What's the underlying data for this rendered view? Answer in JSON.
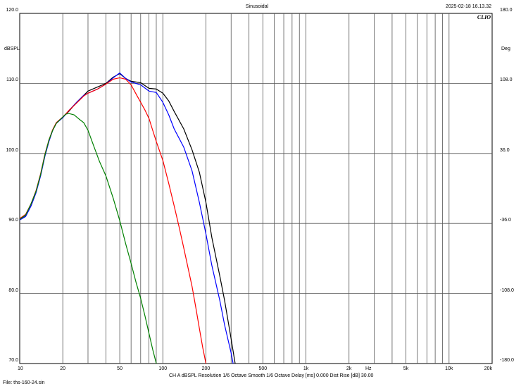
{
  "header": {
    "title": "Sinusoidal",
    "timestamp": "2025-02-18 16.13.32",
    "brand": "CLIO"
  },
  "footer": {
    "settings": "CH A   dBSPL   Resolution 1/6 Octave   Smooth 1/6 Octave   Delay [ms] 0.000   Dist Rise [dB] 30.00",
    "file": "File: ths-160-24.sin"
  },
  "chart_data": {
    "type": "line",
    "x_scale": "log",
    "xlim": [
      10,
      20000
    ],
    "ylim": [
      70,
      120
    ],
    "y2lim": [
      -180,
      180
    ],
    "grid": true,
    "xlabel": "Hz",
    "ylabel": "dBSPL",
    "y2label": "Deg",
    "x_tick_labels": [
      {
        "value": 10,
        "label": "10"
      },
      {
        "value": 20,
        "label": "20"
      },
      {
        "value": 50,
        "label": "50"
      },
      {
        "value": 100,
        "label": "100"
      },
      {
        "value": 200,
        "label": "200"
      },
      {
        "value": 500,
        "label": "500"
      },
      {
        "value": 1000,
        "label": "1k"
      },
      {
        "value": 2000,
        "label": "2k"
      },
      {
        "value": 5000,
        "label": "5k"
      },
      {
        "value": 10000,
        "label": "10k"
      },
      {
        "value": 20000,
        "label": "20k"
      }
    ],
    "y_tick_labels": [
      {
        "value": 120,
        "label": "120.0"
      },
      {
        "value": 110,
        "label": "110.0"
      },
      {
        "value": 100,
        "label": "100.0"
      },
      {
        "value": 90,
        "label": "90.0"
      },
      {
        "value": 80,
        "label": "80.0"
      },
      {
        "value": 70,
        "label": "70.0"
      }
    ],
    "y2_tick_labels": [
      {
        "value": 180,
        "label": "180.0"
      },
      {
        "value": 108,
        "label": "108.0"
      },
      {
        "value": 36,
        "label": "36.0"
      },
      {
        "value": -36,
        "label": "-36.0"
      },
      {
        "value": -108,
        "label": "-108.0"
      },
      {
        "value": -180,
        "label": "-180.0"
      }
    ],
    "series": [
      {
        "color": "#000000",
        "points": [
          [
            10,
            90.5
          ],
          [
            11,
            91.2
          ],
          [
            12,
            92.8
          ],
          [
            13,
            94.6
          ],
          [
            14,
            97.0
          ],
          [
            15,
            99.8
          ],
          [
            16,
            101.9
          ],
          [
            17,
            103.3
          ],
          [
            18,
            104.3
          ],
          [
            20,
            105.2
          ],
          [
            22,
            106.0
          ],
          [
            25,
            107.3
          ],
          [
            28,
            108.3
          ],
          [
            30,
            108.9
          ],
          [
            35,
            109.5
          ],
          [
            40,
            110.0
          ],
          [
            45,
            110.9
          ],
          [
            50,
            111.4
          ],
          [
            55,
            110.7
          ],
          [
            60,
            110.3
          ],
          [
            70,
            110.1
          ],
          [
            80,
            109.3
          ],
          [
            90,
            109.2
          ],
          [
            100,
            108.6
          ],
          [
            110,
            107.5
          ],
          [
            120,
            106.0
          ],
          [
            140,
            103.5
          ],
          [
            160,
            100.5
          ],
          [
            180,
            97.3
          ],
          [
            200,
            93.0
          ],
          [
            220,
            88.0
          ],
          [
            250,
            82.5
          ],
          [
            270,
            79.0
          ],
          [
            300,
            73.5
          ],
          [
            320,
            70.0
          ]
        ]
      },
      {
        "color": "#0000ff",
        "points": [
          [
            10,
            90.5
          ],
          [
            11,
            91.0
          ],
          [
            12,
            92.5
          ],
          [
            13,
            94.4
          ],
          [
            14,
            96.8
          ],
          [
            15,
            99.6
          ],
          [
            16,
            101.7
          ],
          [
            17,
            103.3
          ],
          [
            18,
            104.3
          ],
          [
            20,
            105.1
          ],
          [
            22,
            106.1
          ],
          [
            25,
            107.3
          ],
          [
            28,
            108.3
          ],
          [
            30,
            108.6
          ],
          [
            35,
            109.2
          ],
          [
            40,
            109.9
          ],
          [
            45,
            110.8
          ],
          [
            50,
            111.5
          ],
          [
            55,
            110.7
          ],
          [
            60,
            110.2
          ],
          [
            70,
            109.8
          ],
          [
            80,
            108.9
          ],
          [
            90,
            108.7
          ],
          [
            100,
            107.3
          ],
          [
            110,
            105.5
          ],
          [
            120,
            103.5
          ],
          [
            140,
            100.9
          ],
          [
            160,
            97.5
          ],
          [
            180,
            93.0
          ],
          [
            200,
            88.5
          ],
          [
            220,
            84.0
          ],
          [
            250,
            79.0
          ],
          [
            270,
            75.5
          ],
          [
            300,
            71.5
          ],
          [
            310,
            70.0
          ]
        ]
      },
      {
        "color": "#ff0000",
        "points": [
          [
            10,
            90.7
          ],
          [
            11,
            91.3
          ],
          [
            12,
            92.8
          ],
          [
            13,
            94.7
          ],
          [
            14,
            97.1
          ],
          [
            15,
            99.9
          ],
          [
            16,
            101.9
          ],
          [
            17,
            103.4
          ],
          [
            18,
            104.4
          ],
          [
            20,
            105.2
          ],
          [
            22,
            106.1
          ],
          [
            25,
            107.2
          ],
          [
            28,
            108.2
          ],
          [
            30,
            108.6
          ],
          [
            35,
            109.2
          ],
          [
            40,
            109.9
          ],
          [
            45,
            110.6
          ],
          [
            50,
            110.8
          ],
          [
            55,
            110.6
          ],
          [
            60,
            109.8
          ],
          [
            65,
            108.5
          ],
          [
            70,
            107.3
          ],
          [
            75,
            106.2
          ],
          [
            80,
            105.0
          ],
          [
            85,
            103.3
          ],
          [
            90,
            101.7
          ],
          [
            100,
            99.0
          ],
          [
            110,
            95.7
          ],
          [
            120,
            92.5
          ],
          [
            130,
            89.5
          ],
          [
            140,
            86.5
          ],
          [
            160,
            81.0
          ],
          [
            170,
            78.0
          ],
          [
            180,
            75.0
          ],
          [
            190,
            72.3
          ],
          [
            200,
            70.0
          ]
        ]
      },
      {
        "color": "#008000",
        "points": [
          [
            10,
            90.6
          ],
          [
            11,
            91.2
          ],
          [
            12,
            92.8
          ],
          [
            13,
            94.6
          ],
          [
            14,
            97.0
          ],
          [
            15,
            99.8
          ],
          [
            16,
            101.9
          ],
          [
            17,
            103.3
          ],
          [
            18,
            104.3
          ],
          [
            20,
            105.2
          ],
          [
            21,
            105.6
          ],
          [
            22,
            105.7
          ],
          [
            24,
            105.5
          ],
          [
            26,
            104.9
          ],
          [
            28,
            104.4
          ],
          [
            30,
            103.3
          ],
          [
            33,
            101.0
          ],
          [
            36,
            98.9
          ],
          [
            40,
            96.8
          ],
          [
            45,
            93.6
          ],
          [
            50,
            90.4
          ],
          [
            55,
            87.1
          ],
          [
            60,
            84.3
          ],
          [
            65,
            81.6
          ],
          [
            70,
            79.3
          ],
          [
            75,
            76.8
          ],
          [
            80,
            74.3
          ],
          [
            85,
            72.0
          ],
          [
            90,
            70.0
          ]
        ]
      }
    ]
  }
}
